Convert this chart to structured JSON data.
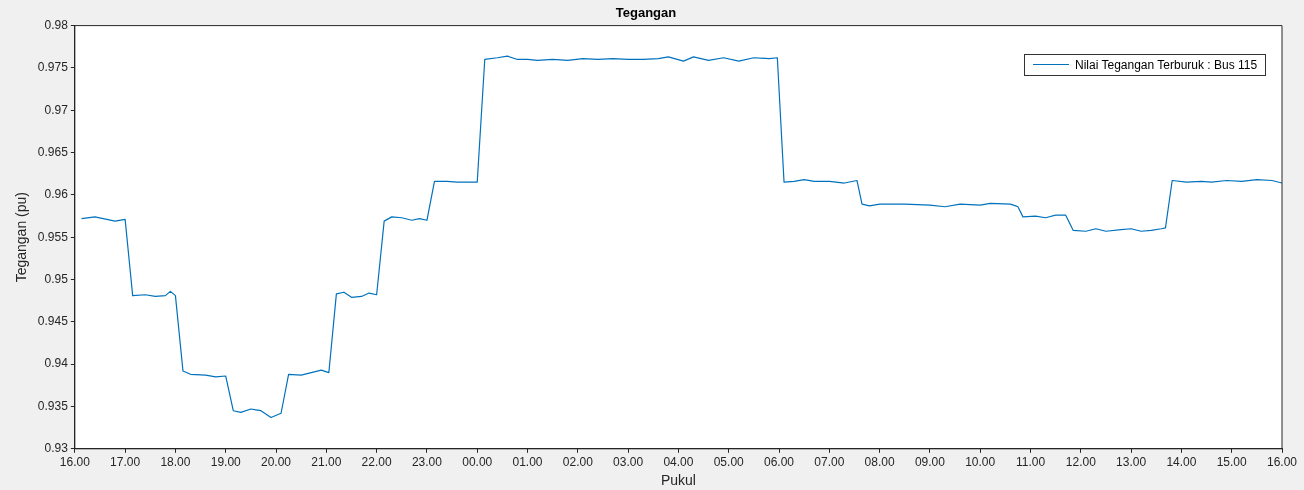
{
  "chart_data": {
    "type": "line",
    "title": "Tegangan",
    "xlabel": "Pukul",
    "ylabel": "Tegangan (pu)",
    "legend": "top right",
    "marker": "none",
    "line_style": "solid",
    "grid": false,
    "xlim": [
      "2000-01-01T16:00",
      "2000-01-02T16:00"
    ],
    "xticks": [
      {
        "value": "2000-01-01T16:00",
        "label": "16.00"
      },
      {
        "value": "2000-01-01T17:00",
        "label": "17.00"
      },
      {
        "value": "2000-01-01T18:00",
        "label": "18.00"
      },
      {
        "value": "2000-01-01T19:00",
        "label": "19.00"
      },
      {
        "value": "2000-01-01T20:00",
        "label": "20.00"
      },
      {
        "value": "2000-01-01T21:00",
        "label": "21.00"
      },
      {
        "value": "2000-01-01T22:00",
        "label": "22.00"
      },
      {
        "value": "2000-01-01T23:00",
        "label": "23.00"
      },
      {
        "value": "2000-01-02T00:00",
        "label": "00.00"
      },
      {
        "value": "2000-01-02T01:00",
        "label": "01.00"
      },
      {
        "value": "2000-01-02T02:00",
        "label": "02.00"
      },
      {
        "value": "2000-01-02T03:00",
        "label": "03.00"
      },
      {
        "value": "2000-01-02T04:00",
        "label": "04.00"
      },
      {
        "value": "2000-01-02T05:00",
        "label": "05.00"
      },
      {
        "value": "2000-01-02T06:00",
        "label": "06.00"
      },
      {
        "value": "2000-01-02T07:00",
        "label": "07.00"
      },
      {
        "value": "2000-01-02T08:00",
        "label": "08.00"
      },
      {
        "value": "2000-01-02T09:00",
        "label": "09.00"
      },
      {
        "value": "2000-01-02T10:00",
        "label": "10.00"
      },
      {
        "value": "2000-01-02T11:00",
        "label": "11.00"
      },
      {
        "value": "2000-01-02T12:00",
        "label": "12.00"
      },
      {
        "value": "2000-01-02T13:00",
        "label": "13.00"
      },
      {
        "value": "2000-01-02T14:00",
        "label": "14.00"
      },
      {
        "value": "2000-01-02T15:00",
        "label": "15.00"
      },
      {
        "value": "2000-01-02T16:00",
        "label": "16.00"
      }
    ],
    "ylim": [
      0.93,
      0.98
    ],
    "yticks": [
      0.93,
      0.935,
      0.94,
      0.945,
      0.95,
      0.955,
      0.96,
      0.965,
      0.97,
      0.975,
      0.98
    ],
    "series": [
      {
        "name": "Nilai Tegangan Terburuk : Bus 115",
        "color": "#0072bd",
        "x": [
          "2000-01-01T16:08",
          "2000-01-01T16:24",
          "2000-01-01T16:48",
          "2000-01-01T17:00",
          "2000-01-01T17:09",
          "2000-01-01T17:24",
          "2000-01-01T17:36",
          "2000-01-01T17:48",
          "2000-01-01T17:54",
          "2000-01-01T18:00",
          "2000-01-01T18:09",
          "2000-01-01T18:18",
          "2000-01-01T18:36",
          "2000-01-01T18:48",
          "2000-01-01T19:00",
          "2000-01-01T19:09",
          "2000-01-01T19:18",
          "2000-01-01T19:30",
          "2000-01-01T19:42",
          "2000-01-01T19:54",
          "2000-01-01T20:06",
          "2000-01-01T20:15",
          "2000-01-01T20:30",
          "2000-01-01T20:42",
          "2000-01-01T20:54",
          "2000-01-01T21:03",
          "2000-01-01T21:12",
          "2000-01-01T21:21",
          "2000-01-01T21:30",
          "2000-01-01T21:42",
          "2000-01-01T21:51",
          "2000-01-01T22:00",
          "2000-01-01T22:09",
          "2000-01-01T22:18",
          "2000-01-01T22:30",
          "2000-01-01T22:42",
          "2000-01-01T22:51",
          "2000-01-01T23:00",
          "2000-01-01T23:09",
          "2000-01-01T23:24",
          "2000-01-01T23:36",
          "2000-01-01T23:54",
          "2000-01-02T00:00",
          "2000-01-02T00:09",
          "2000-01-02T00:24",
          "2000-01-02T00:36",
          "2000-01-02T00:48",
          "2000-01-02T01:00",
          "2000-01-02T01:12",
          "2000-01-02T01:30",
          "2000-01-02T01:48",
          "2000-01-02T02:06",
          "2000-01-02T02:24",
          "2000-01-02T02:42",
          "2000-01-02T03:00",
          "2000-01-02T03:18",
          "2000-01-02T03:36",
          "2000-01-02T03:48",
          "2000-01-02T04:06",
          "2000-01-02T04:18",
          "2000-01-02T04:36",
          "2000-01-02T04:54",
          "2000-01-02T05:12",
          "2000-01-02T05:30",
          "2000-01-02T05:48",
          "2000-01-02T05:58",
          "2000-01-02T06:06",
          "2000-01-02T06:18",
          "2000-01-02T06:30",
          "2000-01-02T06:42",
          "2000-01-02T07:00",
          "2000-01-02T07:18",
          "2000-01-02T07:33",
          "2000-01-02T07:39",
          "2000-01-02T07:48",
          "2000-01-02T08:00",
          "2000-01-02T08:30",
          "2000-01-02T09:00",
          "2000-01-02T09:18",
          "2000-01-02T09:36",
          "2000-01-02T10:00",
          "2000-01-02T10:12",
          "2000-01-02T10:36",
          "2000-01-02T10:45",
          "2000-01-02T10:51",
          "2000-01-02T11:06",
          "2000-01-02T11:18",
          "2000-01-02T11:30",
          "2000-01-02T11:42",
          "2000-01-02T11:51",
          "2000-01-02T12:06",
          "2000-01-02T12:18",
          "2000-01-02T12:30",
          "2000-01-02T12:48",
          "2000-01-02T13:00",
          "2000-01-02T13:12",
          "2000-01-02T13:24",
          "2000-01-02T13:36",
          "2000-01-02T13:41",
          "2000-01-02T13:49",
          "2000-01-02T14:06",
          "2000-01-02T14:24",
          "2000-01-02T14:36",
          "2000-01-02T14:54",
          "2000-01-02T15:12",
          "2000-01-02T15:30",
          "2000-01-02T15:48",
          "2000-01-02T16:00"
        ],
        "values": [
          0.9572,
          0.9574,
          0.9569,
          0.9571,
          0.9481,
          0.9482,
          0.948,
          0.9481,
          0.9486,
          0.9481,
          0.9392,
          0.9388,
          0.9387,
          0.9385,
          0.9386,
          0.9345,
          0.9343,
          0.9347,
          0.9345,
          0.9337,
          0.9342,
          0.9388,
          0.9387,
          0.939,
          0.9393,
          0.939,
          0.9483,
          0.9485,
          0.9479,
          0.948,
          0.9484,
          0.9482,
          0.9569,
          0.9574,
          0.9573,
          0.957,
          0.9572,
          0.957,
          0.9616,
          0.9616,
          0.9615,
          0.9615,
          0.9615,
          0.976,
          0.9762,
          0.9764,
          0.976,
          0.976,
          0.9759,
          0.976,
          0.9759,
          0.9761,
          0.976,
          0.9761,
          0.976,
          0.976,
          0.9761,
          0.9763,
          0.9758,
          0.9763,
          0.9759,
          0.9762,
          0.9758,
          0.9762,
          0.9761,
          0.9762,
          0.9615,
          0.9616,
          0.9618,
          0.9616,
          0.9616,
          0.9614,
          0.9617,
          0.9589,
          0.9587,
          0.9589,
          0.9589,
          0.9588,
          0.9586,
          0.9589,
          0.9588,
          0.959,
          0.9589,
          0.9586,
          0.9574,
          0.9575,
          0.9573,
          0.9576,
          0.9576,
          0.9558,
          0.9557,
          0.956,
          0.9557,
          0.9559,
          0.956,
          0.9557,
          0.9558,
          0.956,
          0.9561,
          0.9617,
          0.9615,
          0.9616,
          0.9615,
          0.9617,
          0.9616,
          0.9618,
          0.9617,
          0.9614
        ]
      }
    ]
  }
}
